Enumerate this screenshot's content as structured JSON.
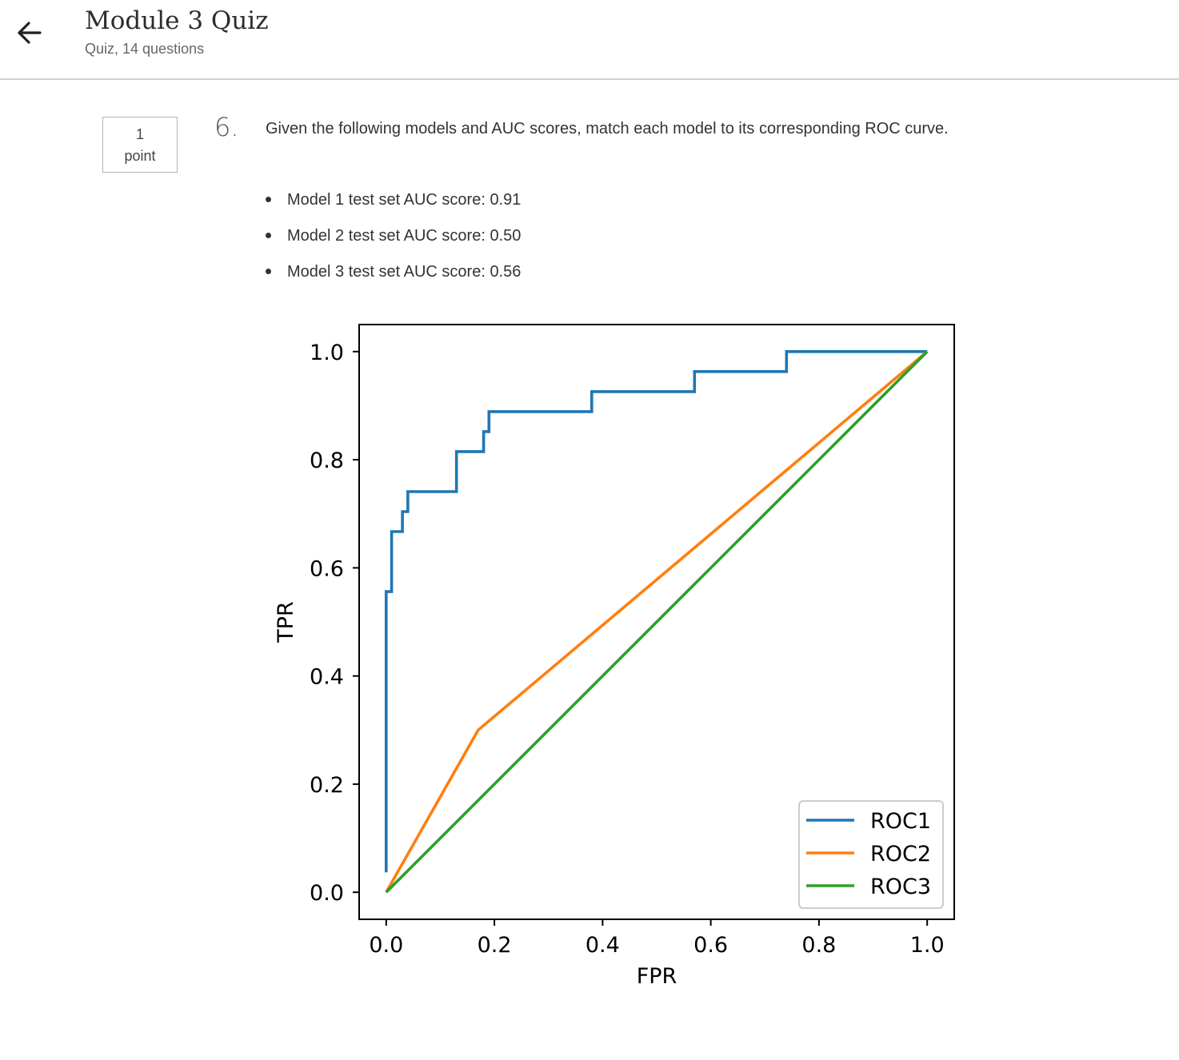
{
  "header": {
    "title": "Module 3 Quiz",
    "subtitle": "Quiz, 14 questions",
    "back_icon": "arrow-left-icon"
  },
  "question": {
    "points_value": "1",
    "points_label": "point",
    "number": "6.",
    "text": "Given the following models and AUC scores, match each model to its corresponding ROC curve.",
    "items": [
      "Model 1 test set AUC score: 0.91",
      "Model 2 test set AUC score: 0.50",
      "Model 3 test set AUC score: 0.56"
    ]
  },
  "chart_data": {
    "type": "line",
    "title": "",
    "xlabel": "FPR",
    "ylabel": "TPR",
    "xlim": [
      -0.05,
      1.05
    ],
    "ylim": [
      -0.05,
      1.05
    ],
    "xticks": [
      "0.0",
      "0.2",
      "0.4",
      "0.6",
      "0.8",
      "1.0"
    ],
    "yticks": [
      "0.0",
      "0.2",
      "0.4",
      "0.6",
      "0.8",
      "1.0"
    ],
    "grid": false,
    "legend_position": "lower-right",
    "series": [
      {
        "name": "ROC1",
        "color": "#1f77b4",
        "x": [
          0.0,
          0.0,
          0.01,
          0.01,
          0.03,
          0.03,
          0.04,
          0.04,
          0.13,
          0.13,
          0.18,
          0.18,
          0.19,
          0.19,
          0.38,
          0.38,
          0.57,
          0.57,
          0.74,
          0.74,
          1.0
        ],
        "y": [
          0.037,
          0.556,
          0.556,
          0.667,
          0.667,
          0.704,
          0.704,
          0.741,
          0.741,
          0.815,
          0.815,
          0.852,
          0.852,
          0.889,
          0.889,
          0.926,
          0.926,
          0.963,
          0.963,
          1.0,
          1.0
        ]
      },
      {
        "name": "ROC2",
        "color": "#ff7f0e",
        "x": [
          0.0,
          0.17,
          1.0
        ],
        "y": [
          0.0,
          0.3,
          1.0
        ]
      },
      {
        "name": "ROC3",
        "color": "#2ca02c",
        "x": [
          0.0,
          1.0
        ],
        "y": [
          0.0,
          1.0
        ]
      }
    ]
  }
}
